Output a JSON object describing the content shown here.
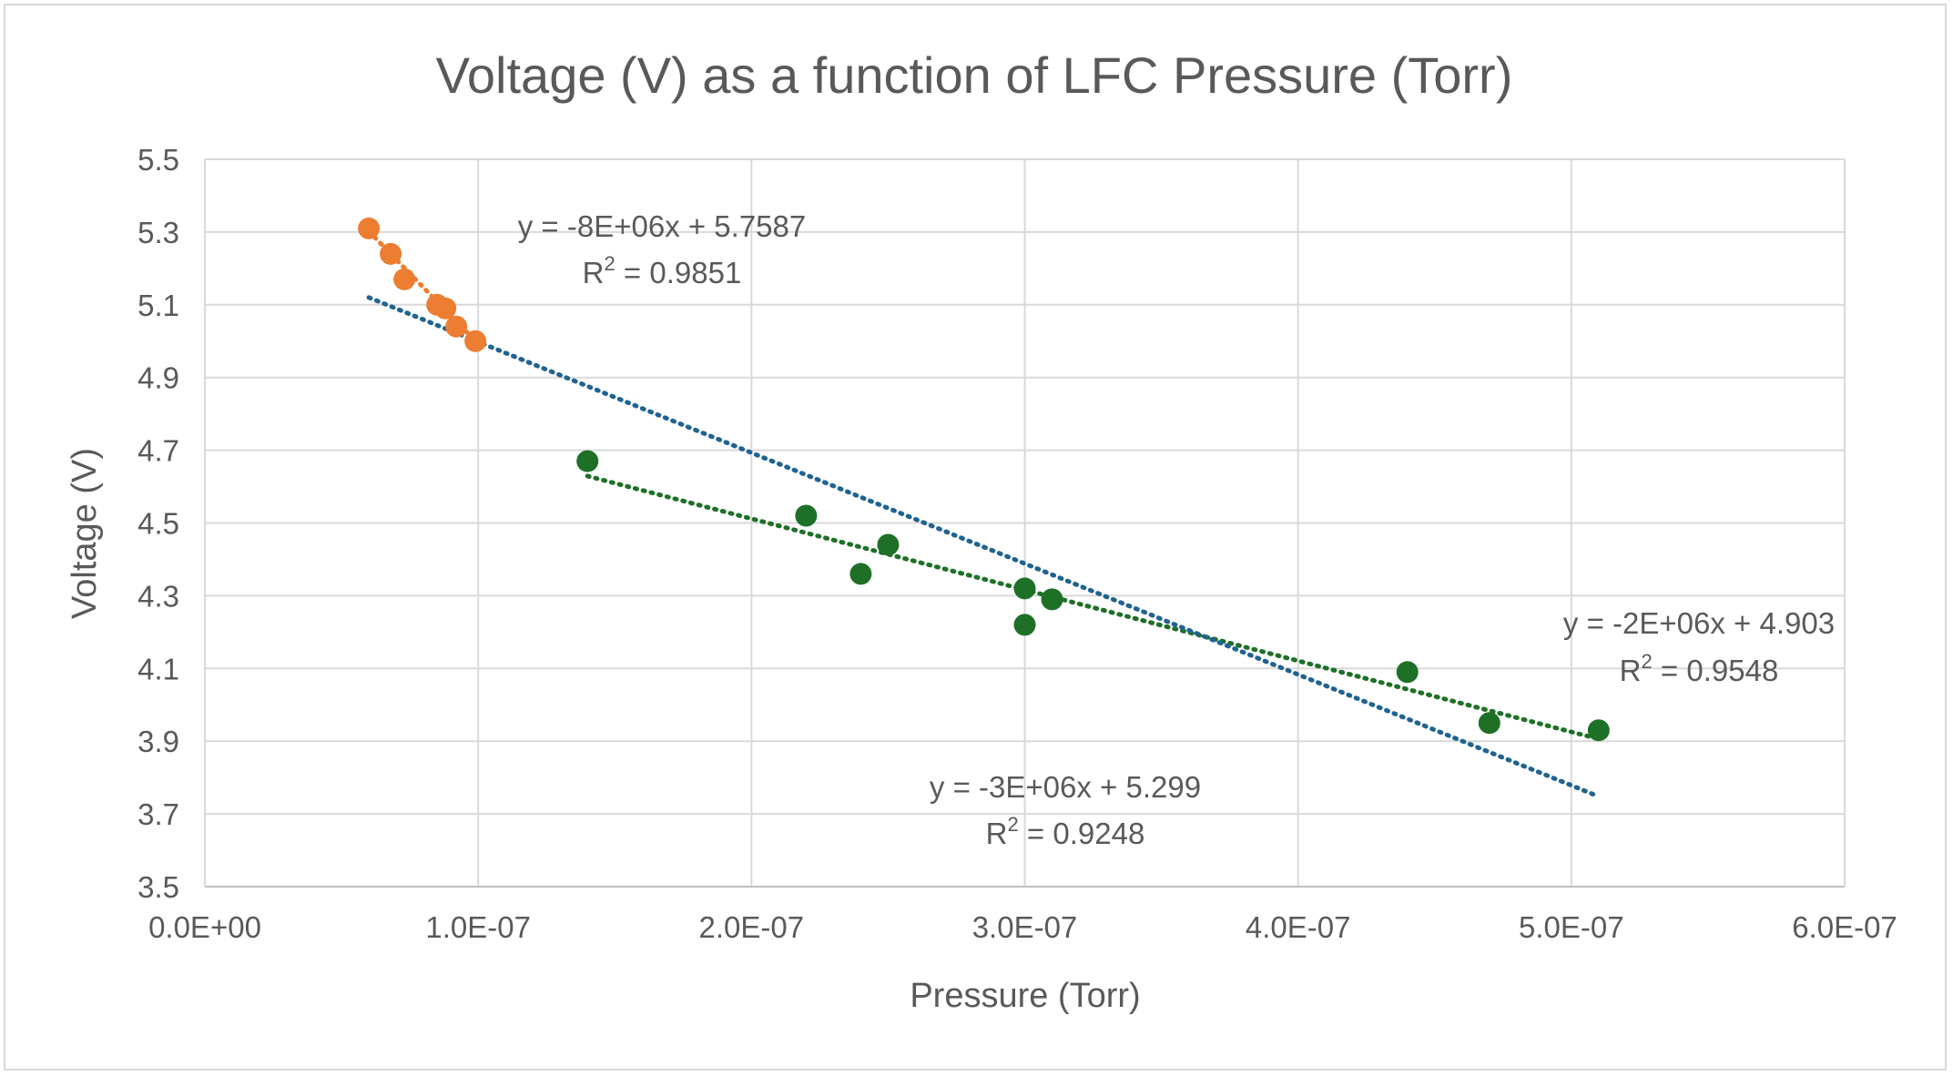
{
  "chart_data": {
    "type": "scatter",
    "title": "Voltage (V) as a function of LFC Pressure (Torr)",
    "xlabel": "Pressure (Torr)",
    "ylabel": "Voltage (V)",
    "xlim": [
      0,
      6e-07
    ],
    "ylim": [
      3.5,
      5.5
    ],
    "x_ticks": [
      "0.0E+00",
      "1.0E-07",
      "2.0E-07",
      "3.0E-07",
      "4.0E-07",
      "5.0E-07",
      "6.0E-07"
    ],
    "x_tick_values": [
      0,
      1e-07,
      2e-07,
      3e-07,
      4e-07,
      5e-07,
      6e-07
    ],
    "y_ticks": [
      "3.5",
      "3.7",
      "3.9",
      "4.1",
      "4.3",
      "4.5",
      "4.7",
      "4.9",
      "5.1",
      "5.3",
      "5.5"
    ],
    "y_tick_values": [
      3.5,
      3.7,
      3.9,
      4.1,
      4.3,
      4.5,
      4.7,
      4.9,
      5.1,
      5.3,
      5.5
    ],
    "grid": true,
    "legend": "none",
    "series": [
      {
        "color": "#ed7d31",
        "points": [
          {
            "x": 6e-08,
            "y": 5.31
          },
          {
            "x": 6.8e-08,
            "y": 5.24
          },
          {
            "x": 7.3e-08,
            "y": 5.17
          },
          {
            "x": 8.5e-08,
            "y": 5.1
          },
          {
            "x": 8.8e-08,
            "y": 5.09
          },
          {
            "x": 9.2e-08,
            "y": 5.04
          },
          {
            "x": 9.9e-08,
            "y": 5.0
          }
        ]
      },
      {
        "color": "#1e7027",
        "points": [
          {
            "x": 1.4e-07,
            "y": 4.67
          },
          {
            "x": 2.2e-07,
            "y": 4.52
          },
          {
            "x": 2.4e-07,
            "y": 4.36
          },
          {
            "x": 2.5e-07,
            "y": 4.44
          },
          {
            "x": 3e-07,
            "y": 4.32
          },
          {
            "x": 3e-07,
            "y": 4.22
          },
          {
            "x": 3.1e-07,
            "y": 4.29
          },
          {
            "x": 4.4e-07,
            "y": 4.09
          },
          {
            "x": 4.7e-07,
            "y": 3.95
          },
          {
            "x": 5.1e-07,
            "y": 3.93
          }
        ]
      }
    ],
    "trendlines": [
      {
        "color": "#ed7d31",
        "x_range": [
          6e-08,
          9.9e-08
        ],
        "y_range": [
          5.302,
          5.0
        ],
        "equation": "y = -8E+06x + 5.7587",
        "r2_label": "0.9851"
      },
      {
        "color": "#1e7027",
        "x_range": [
          1.4e-07,
          5.1e-07
        ],
        "y_range": [
          4.629,
          3.906
        ],
        "equation": "y = -2E+06x + 4.903",
        "r2_label": "0.9548"
      },
      {
        "color": "#1f6391",
        "x_range": [
          6e-08,
          5.1e-07
        ],
        "y_range": [
          5.12,
          3.748
        ],
        "equation": "y = -3E+06x + 5.299",
        "r2_label": "0.9248"
      }
    ]
  }
}
